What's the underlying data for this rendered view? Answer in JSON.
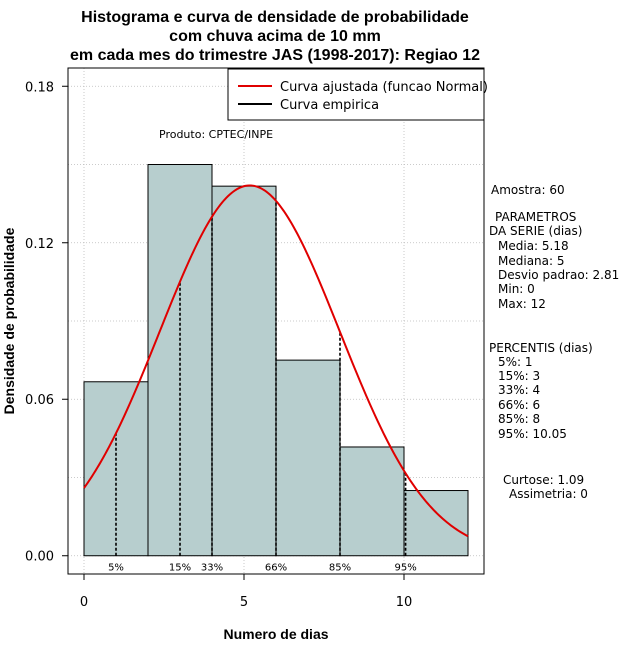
{
  "chart_data": {
    "type": "bar",
    "title_lines": [
      "Histograma e curva de densidade de probabilidade",
      "com chuva acima de 10 mm",
      "em cada mes do trimestre JAS (1998-2017): Regiao 12"
    ],
    "xlabel": "Numero de dias",
    "ylabel": "Densidade de probabilidade",
    "xlim": [
      -0.5,
      12.5
    ],
    "ylim": [
      -0.007,
      0.187
    ],
    "x_ticks": [
      0,
      5,
      10
    ],
    "y_ticks": [
      0.0,
      0.06,
      0.12,
      0.18
    ],
    "y_tick_labels": [
      "0.00",
      "0.06",
      "0.12",
      "0.18"
    ],
    "bins": [
      {
        "start": 0,
        "end": 2,
        "density": 0.0667
      },
      {
        "start": 2,
        "end": 4,
        "density": 0.15
      },
      {
        "start": 4,
        "end": 6,
        "density": 0.1417
      },
      {
        "start": 6,
        "end": 8,
        "density": 0.075
      },
      {
        "start": 8,
        "end": 10,
        "density": 0.0417
      },
      {
        "start": 10,
        "end": 12,
        "density": 0.025
      }
    ],
    "bar_color": "#b7cece",
    "curve_color": "#e00000",
    "normal_curve": {
      "mean": 5.18,
      "sd": 2.81,
      "x_range": [
        0,
        12
      ]
    },
    "percentiles": [
      {
        "label": "5%",
        "x": 1
      },
      {
        "label": "15%",
        "x": 3
      },
      {
        "label": "33%",
        "x": 4
      },
      {
        "label": "66%",
        "x": 6
      },
      {
        "label": "85%",
        "x": 8
      },
      {
        "label": "95%",
        "x": 10.05
      }
    ],
    "grid": true,
    "legend_position": "top-right",
    "legend": [
      {
        "label": "Curva ajustada (funcao Normal)",
        "color": "#e00000"
      },
      {
        "label": "Curva empirica",
        "color": "#000000"
      }
    ],
    "annotation": "Produto: CPTEC/INPE"
  },
  "stats": {
    "amostra": "Amostra: 60",
    "parametros_title": "PARAMETROS",
    "parametros_sub": "DA SERIE (dias)",
    "media": "Media: 5.18",
    "mediana": "Mediana: 5",
    "desvio": "Desvio padrao: 2.81",
    "min": "Min: 0",
    "max": "Max: 12",
    "percentis_title": "PERCENTIS (dias)",
    "p5": "5%: 1",
    "p15": "15%: 3",
    "p33": "33%: 4",
    "p66": "66%: 6",
    "p85": "85%: 8",
    "p95": "95%: 10.05",
    "curtose": "Curtose: 1.09",
    "assimetria": "Assimetria: 0"
  }
}
